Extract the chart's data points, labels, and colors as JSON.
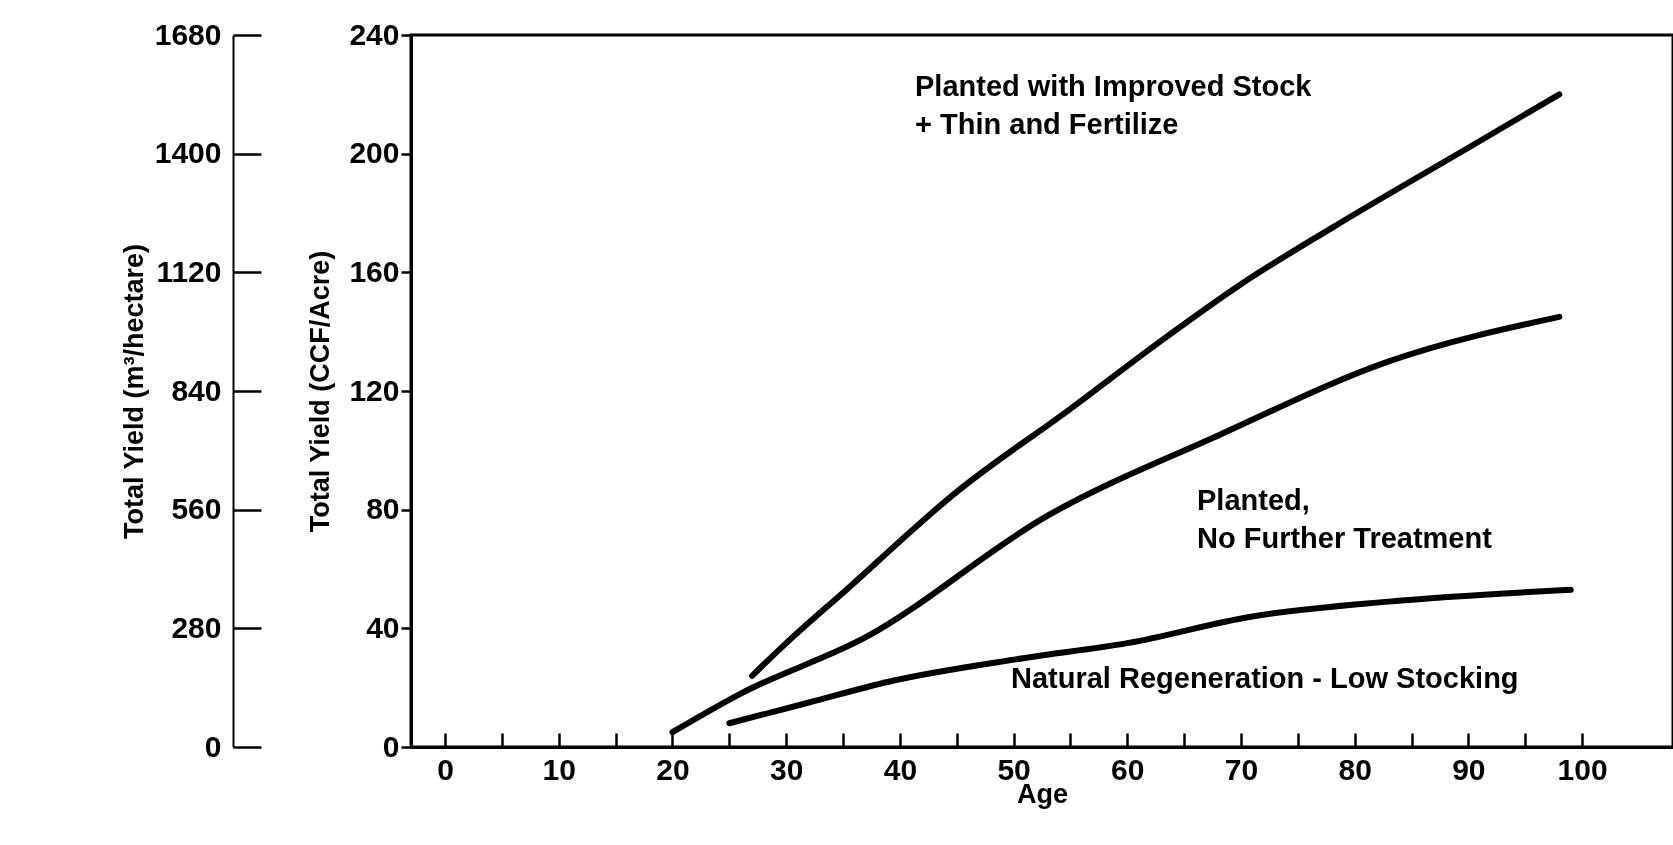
{
  "chart_data": {
    "type": "line",
    "xlabel": "Age",
    "ylabel": "Total Yield (CCF/Acre)",
    "y2label": "Total Yield (m³/hectare)",
    "xlim": [
      -3,
      108
    ],
    "xticks": [
      0,
      {
        "value": 5,
        "label": null
      },
      10,
      {
        "value": 15,
        "label": null
      },
      20,
      {
        "value": 25,
        "label": null
      },
      30,
      {
        "value": 35,
        "label": null
      },
      40,
      {
        "value": 45,
        "label": null
      },
      50,
      {
        "value": 55,
        "label": null
      },
      60,
      {
        "value": 65,
        "label": null
      },
      70,
      {
        "value": 75,
        "label": null
      },
      80,
      {
        "value": 85,
        "label": null
      },
      90,
      {
        "value": 95,
        "label": null
      },
      100
    ],
    "ylim": [
      0,
      240
    ],
    "yticks": [
      0,
      40,
      80,
      120,
      160,
      200,
      240
    ],
    "y2lim": [
      0,
      1680
    ],
    "y2ticks": [
      0,
      280,
      560,
      840,
      1120,
      1400,
      1680
    ],
    "marker": "none",
    "line_style": "solid",
    "grid": false,
    "series": [
      {
        "color": "#000000",
        "x": [
          27,
          30,
          35,
          45,
          55,
          63,
          70,
          78,
          90,
          98
        ],
        "values": [
          24,
          35,
          52,
          86,
          114,
          137,
          156,
          175,
          202,
          220
        ]
      },
      {
        "color": "#000000",
        "x": [
          20,
          26,
          37,
          53,
          68,
          83,
          98
        ],
        "values": [
          5,
          18,
          37,
          78,
          105,
          130,
          145
        ]
      },
      {
        "color": "#000000",
        "x": [
          25,
          32,
          39,
          51,
          60,
          71,
          83,
          99
        ],
        "values": [
          8,
          15,
          22,
          30,
          35,
          44,
          49,
          53
        ]
      }
    ],
    "annotations": [
      "Planted with Improved Stock\n+ Thin and Fertilize",
      "Planted,\nNo Further Treatment",
      "Natural Regeneration - Low Stocking"
    ]
  }
}
